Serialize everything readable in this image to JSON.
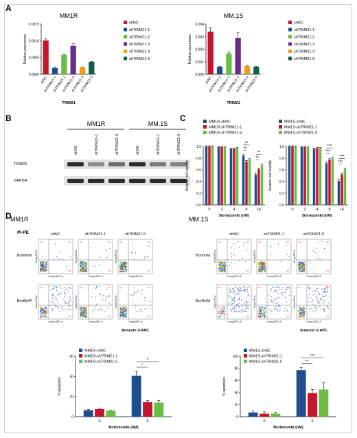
{
  "panel_labels": {
    "a": "A",
    "b": "B",
    "c": "C",
    "d": "D"
  },
  "colors": {
    "red": "#c6162d",
    "blue": "#1f4e8c",
    "green": "#6bbd45",
    "purple": "#6a2d8c",
    "orange": "#f39c12",
    "teal": "#0e5e4c",
    "wb_band": "#222222"
  },
  "chart_data": [
    {
      "type": "bar",
      "id": "A1",
      "title": "MM1R",
      "xlabel": "TRIM21",
      "ylabel": "Relative expression",
      "ylim": [
        0,
        0.0015
      ],
      "yticks": [
        "0.0000",
        "0.0005",
        "0.0010",
        "0.0015"
      ],
      "ytick_values": [
        0,
        0.0005,
        0.001,
        0.0015
      ],
      "categories": [
        "shNC",
        "shTRIM21-1",
        "shTRIM21-2",
        "shTRIM21-3",
        "shTRIM21-4",
        "shTRIM21-5"
      ],
      "values": [
        0.00101,
        0.00019,
        0.00058,
        0.00085,
        0.0002,
        0.00037
      ],
      "errors": [
        5e-05,
        3e-05,
        2e-05,
        6e-05,
        1e-05,
        1e-05
      ],
      "legend": [
        "shNC",
        "shTRIM21-1",
        "shTRIM21-2",
        "shTRIM21-3",
        "shTRIM21-4",
        "shTRIM21-5"
      ]
    },
    {
      "type": "bar",
      "id": "A2",
      "title": "MM.1S",
      "xlabel": "TRIM21",
      "ylabel": "Relative expression",
      "ylim": [
        0,
        0.004
      ],
      "yticks": [
        "0.000",
        "0.001",
        "0.002",
        "0.003",
        "0.004"
      ],
      "ytick_values": [
        0,
        0.001,
        0.002,
        0.003,
        0.004
      ],
      "categories": [
        "shNC",
        "shTRIM21-1",
        "shTRIM21-2",
        "shTRIM21-3",
        "shTRIM21-4",
        "shTRIM21-5"
      ],
      "values": [
        0.0034,
        0.0006,
        0.00165,
        0.0029,
        0.00065,
        0.0006
      ],
      "errors": [
        0.0003,
        5e-05,
        0.0001,
        0.0004,
        3e-05,
        3e-05
      ],
      "legend": [
        "shNC",
        "shTRIM21-1",
        "shTRIM21-2",
        "shTRIM21-3",
        "shTRIM21-4",
        "shTRIM21-5"
      ]
    },
    {
      "type": "bar",
      "id": "C1",
      "xlabel": "Bortezomib (nM)",
      "ylabel": "Relative cell viability",
      "ylim": [
        0,
        1.0
      ],
      "yticks": [
        "0.0",
        "0.2",
        "0.4",
        "0.6",
        "0.8",
        "1.0"
      ],
      "ytick_values": [
        0,
        0.2,
        0.4,
        0.6,
        0.8,
        1.0
      ],
      "categories": [
        "0",
        "2",
        "4",
        "8",
        "16"
      ],
      "series": [
        {
          "name": "MM1R-shNC",
          "values": [
            1.0,
            0.99,
            0.96,
            0.84,
            0.52
          ],
          "errors": [
            0.01,
            0.01,
            0.01,
            0.02,
            0.03
          ]
        },
        {
          "name": "MM1R-shTRIM21-1",
          "values": [
            1.0,
            0.99,
            0.96,
            0.74,
            0.61
          ],
          "errors": [
            0.01,
            0.01,
            0.01,
            0.02,
            0.02
          ]
        },
        {
          "name": "MM1R-shTRIM21-5",
          "values": [
            1.0,
            0.99,
            0.97,
            0.77,
            0.68
          ],
          "errors": [
            0.01,
            0.01,
            0.01,
            0.02,
            0.02
          ]
        }
      ],
      "significance": [
        {
          "category": "8",
          "labels": [
            "**",
            "**"
          ]
        },
        {
          "category": "16",
          "labels": [
            "**",
            "**"
          ]
        }
      ]
    },
    {
      "type": "bar",
      "id": "C2",
      "xlabel": "Bortezomib (nM)",
      "ylabel": "Relative cell viability",
      "ylim": [
        0,
        1.0
      ],
      "yticks": [
        "0.0",
        "0.2",
        "0.4",
        "0.6",
        "0.8",
        "1.0"
      ],
      "ytick_values": [
        0,
        0.2,
        0.4,
        0.6,
        0.8,
        1.0
      ],
      "categories": [
        "0",
        "2",
        "4",
        "8",
        "16"
      ],
      "series": [
        {
          "name": "MM1S-shNC",
          "values": [
            1.0,
            0.99,
            0.96,
            0.71,
            0.41
          ],
          "errors": [
            0.01,
            0.01,
            0.01,
            0.02,
            0.03
          ]
        },
        {
          "name": "MM1S-shTRIM21-1",
          "values": [
            1.0,
            0.99,
            0.97,
            0.77,
            0.52
          ],
          "errors": [
            0.01,
            0.01,
            0.01,
            0.02,
            0.02
          ]
        },
        {
          "name": "MM1S-shTRIM21-5",
          "values": [
            1.0,
            0.99,
            0.97,
            0.79,
            0.61
          ],
          "errors": [
            0.01,
            0.01,
            0.01,
            0.02,
            0.02
          ]
        }
      ],
      "significance": [
        {
          "category": "8",
          "labels": [
            "***",
            "***"
          ]
        },
        {
          "category": "16",
          "labels": [
            "***",
            "***"
          ]
        }
      ]
    },
    {
      "type": "bar",
      "id": "D1",
      "xlabel": "Bortezomib (nM)",
      "ylabel": "% apoptosis",
      "ylim": [
        0,
        60
      ],
      "yticks": [
        "0",
        "20",
        "40",
        "60"
      ],
      "ytick_values": [
        0,
        20,
        40,
        60
      ],
      "categories": [
        "0",
        "5"
      ],
      "series": [
        {
          "name": "MM1R-shNC",
          "values": [
            6.5,
            40.5
          ],
          "errors": [
            0.8,
            4.5
          ]
        },
        {
          "name": "MM1R-shTRIM21-1",
          "values": [
            7.5,
            14.5
          ],
          "errors": [
            0.8,
            1.5
          ]
        },
        {
          "name": "MM1R-shTRIM21-5",
          "values": [
            6.0,
            14.0
          ],
          "errors": [
            0.5,
            2.0
          ]
        }
      ],
      "significance": [
        {
          "category": "5",
          "labels": [
            "*",
            "*"
          ]
        }
      ]
    },
    {
      "type": "bar",
      "id": "D2",
      "xlabel": "Bortezomib (nM)",
      "ylabel": "% apoptosis",
      "ylim": [
        0,
        100
      ],
      "yticks": [
        "0",
        "20",
        "40",
        "60",
        "80",
        "100"
      ],
      "ytick_values": [
        0,
        20,
        40,
        60,
        80,
        100
      ],
      "categories": [
        "0",
        "5"
      ],
      "series": [
        {
          "name": "MM1S-shNC",
          "values": [
            7.0,
            77.0
          ],
          "errors": [
            3.0,
            4.0
          ]
        },
        {
          "name": "MM1S-shTRIM21-1",
          "values": [
            5.0,
            39.0
          ],
          "errors": [
            3.0,
            6.0
          ]
        },
        {
          "name": "MM1S-shTRIM21-5",
          "values": [
            5.0,
            45.0
          ],
          "errors": [
            2.5,
            11.0
          ]
        }
      ],
      "significance": [
        {
          "category": "5",
          "labels": [
            "***",
            "**"
          ]
        }
      ]
    }
  ],
  "western_blot": {
    "groups": [
      "MM1R",
      "MM.1S"
    ],
    "lanes": [
      "shNC",
      "shTRIM21-1",
      "shTRIM21-5",
      "shNC",
      "shTRIM21-1",
      "shTRIM21-5"
    ],
    "rows": [
      {
        "label": "TRIM21",
        "intensity": [
          0.95,
          0.45,
          0.6,
          0.95,
          0.55,
          0.5
        ]
      },
      {
        "label": "GAPDH",
        "intensity": [
          0.95,
          0.95,
          0.95,
          0.95,
          0.95,
          0.95
        ]
      }
    ]
  },
  "flow": {
    "panels": [
      {
        "title": "MM1R",
        "columns": [
          "shNC",
          "shTRIM21-1",
          "shTRIM21-5"
        ],
        "xaxis": "Annexin V-APC"
      },
      {
        "title": "MM.1S",
        "columns": [
          "shNC",
          "shTRIM21-1",
          "shTRIM21-5"
        ],
        "xaxis": "Annexin V-APC"
      }
    ],
    "rows": [
      "Bort0nM",
      "Bort5nM"
    ],
    "y_channel": "PI-PE",
    "cell_ylabel": "Comp-PE-A",
    "cell_xlabel": "Comp-APC-A",
    "quadrants": [
      "Q1",
      "Q2",
      "Q3",
      "Q4"
    ],
    "apoptotic_fraction": [
      [
        [
          0.05,
          0.08,
          0.06
        ],
        [
          0.35,
          0.15,
          0.14
        ]
      ],
      [
        [
          0.06,
          0.05,
          0.05
        ],
        [
          0.7,
          0.38,
          0.42
        ]
      ]
    ]
  }
}
